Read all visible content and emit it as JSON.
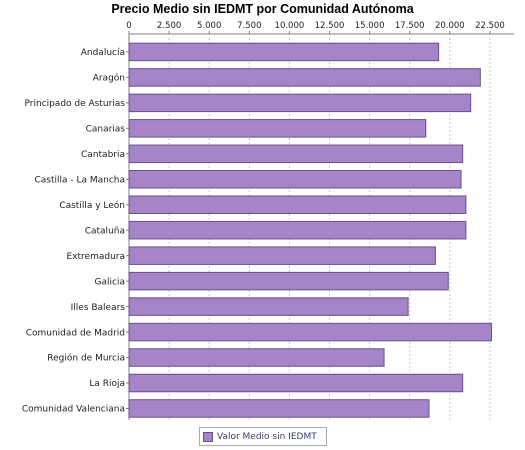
{
  "chart_data": {
    "type": "bar",
    "orientation": "horizontal",
    "title": "Precio Medio sin IEDMT por Comunidad Autónoma",
    "categories": [
      "Andalucía",
      "Aragón",
      "Principado de Asturias",
      "Canarias",
      "Cantabria",
      "Castilla - La Mancha",
      "Castilla y León",
      "Cataluña",
      "Extremadura",
      "Galicia",
      "Illes Balears",
      "Comunidad de Madrid",
      "Región de Murcia",
      "La Rioja",
      "Comunidad Valenciana"
    ],
    "series": [
      {
        "name": "Valor Medio sin IEDMT",
        "values": [
          19300,
          21900,
          21300,
          18500,
          20800,
          20700,
          21000,
          21000,
          19100,
          19900,
          17400,
          22600,
          15900,
          20800,
          18700
        ]
      }
    ],
    "tick_labels": [
      "0",
      "2.500",
      "5.000",
      "7.500",
      "10.000",
      "12.500",
      "15.000",
      "17.500",
      "20.000",
      "22.500"
    ],
    "xlim": [
      0,
      24000
    ],
    "xaxis_position": "top",
    "grid": "vertical dashed",
    "legend_position": "bottom-center",
    "colors": {
      "bar_fill": "#a585c8",
      "bar_stroke": "#6a4f8d",
      "grid": "#c8c8c8"
    }
  }
}
